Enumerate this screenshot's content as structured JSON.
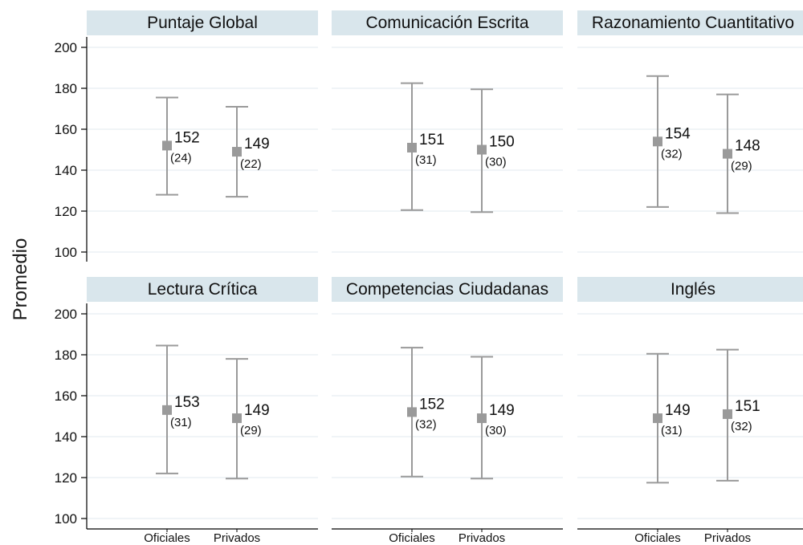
{
  "y_axis_label": "Promedio",
  "colors": {
    "header_bg": "#d9e6ec",
    "marker": "#9a9a9a",
    "errorbar": "#9a9a9a",
    "gridline": "#e6eef2",
    "axis": "#000000"
  },
  "chart_data": {
    "type": "errorbar",
    "categories": [
      "Oficiales",
      "Privados"
    ],
    "ylim": [
      95,
      205
    ],
    "yticks": [
      100,
      120,
      140,
      160,
      180,
      200
    ],
    "grid": true,
    "panels": [
      {
        "title": "Puntaje Global",
        "points": [
          {
            "category": "Oficiales",
            "mean": 152,
            "sd": 24,
            "mean_label": "152",
            "sd_label": "(24)",
            "low": 128,
            "high": 175.5
          },
          {
            "category": "Privados",
            "mean": 149,
            "sd": 22,
            "mean_label": "149",
            "sd_label": "(22)",
            "low": 127,
            "high": 171
          }
        ]
      },
      {
        "title": "Comunicación Escrita",
        "points": [
          {
            "category": "Oficiales",
            "mean": 151,
            "sd": 31,
            "mean_label": "151",
            "sd_label": "(31)",
            "low": 120.5,
            "high": 182.5
          },
          {
            "category": "Privados",
            "mean": 150,
            "sd": 30,
            "mean_label": "150",
            "sd_label": "(30)",
            "low": 119.5,
            "high": 179.5
          }
        ]
      },
      {
        "title": "Razonamiento Cuantitativo",
        "points": [
          {
            "category": "Oficiales",
            "mean": 154,
            "sd": 32,
            "mean_label": "154",
            "sd_label": "(32)",
            "low": 122,
            "high": 186
          },
          {
            "category": "Privados",
            "mean": 148,
            "sd": 29,
            "mean_label": "148",
            "sd_label": "(29)",
            "low": 119,
            "high": 177
          }
        ]
      },
      {
        "title": "Lectura Crítica",
        "points": [
          {
            "category": "Oficiales",
            "mean": 153,
            "sd": 31,
            "mean_label": "153",
            "sd_label": "(31)",
            "low": 122,
            "high": 184.5
          },
          {
            "category": "Privados",
            "mean": 149,
            "sd": 29,
            "mean_label": "149",
            "sd_label": "(29)",
            "low": 119.5,
            "high": 178
          }
        ]
      },
      {
        "title": "Competencias Ciudadanas",
        "points": [
          {
            "category": "Oficiales",
            "mean": 152,
            "sd": 32,
            "mean_label": "152",
            "sd_label": "(32)",
            "low": 120.5,
            "high": 183.5
          },
          {
            "category": "Privados",
            "mean": 149,
            "sd": 30,
            "mean_label": "149",
            "sd_label": "(30)",
            "low": 119.5,
            "high": 179
          }
        ]
      },
      {
        "title": "Inglés",
        "points": [
          {
            "category": "Oficiales",
            "mean": 149,
            "sd": 31,
            "mean_label": "149",
            "sd_label": "(31)",
            "low": 117.5,
            "high": 180.5
          },
          {
            "category": "Privados",
            "mean": 151,
            "sd": 32,
            "mean_label": "151",
            "sd_label": "(32)",
            "low": 118.5,
            "high": 182.5
          }
        ]
      }
    ]
  }
}
